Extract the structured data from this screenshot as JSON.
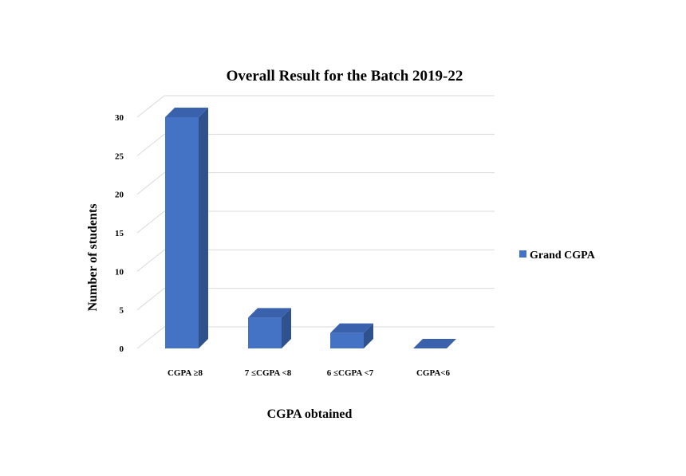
{
  "chart_data": {
    "type": "bar",
    "title": "Overall Result for the Batch 2019-22",
    "xlabel": "CGPA obtained",
    "ylabel": "Number of students",
    "categories": [
      "CGPA ≥8",
      "7 ≤CGPA <8",
      "6 ≤CGPA <7",
      "CGPA<6"
    ],
    "series": [
      {
        "name": "Grand CGPA",
        "values": [
          30,
          4,
          2,
          0
        ]
      }
    ],
    "ylim": [
      0,
      30
    ],
    "yticks": [
      0,
      5,
      10,
      15,
      20,
      25,
      30
    ],
    "grid": true,
    "legend": "right",
    "three_d": true,
    "colors": {
      "front": "#4472C4",
      "side": "#2F528F",
      "top": "#3A62AC"
    }
  }
}
